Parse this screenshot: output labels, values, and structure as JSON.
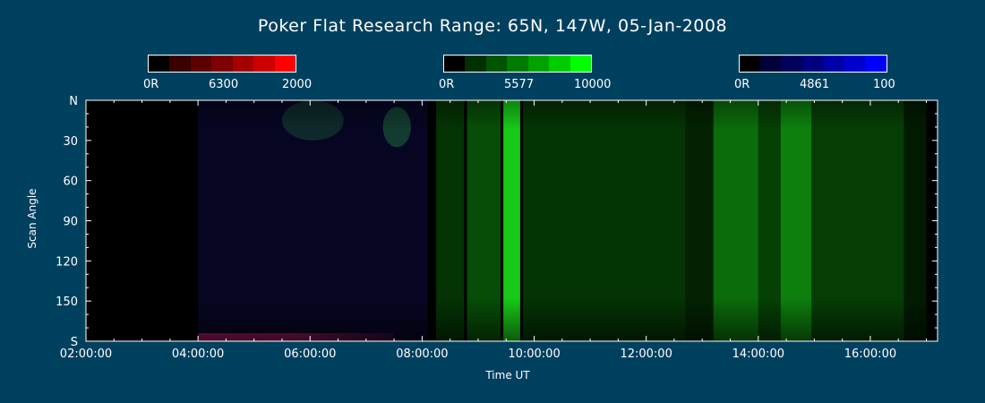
{
  "title": "Poker Flat Research Range: 65N, 147W, 05-Jan-2008",
  "colorbars": [
    {
      "label_min": "0R",
      "label_mid": "6300",
      "label_max": "2000",
      "colors": [
        "#000000",
        "#3a0000",
        "#5c0000",
        "#7e0000",
        "#a40000",
        "#cc0000",
        "#ff0000"
      ]
    },
    {
      "label_min": "0R",
      "label_mid": "5577",
      "label_max": "10000",
      "colors": [
        "#000000",
        "#003000",
        "#005400",
        "#007a00",
        "#00a200",
        "#00cc00",
        "#00ff00"
      ]
    },
    {
      "label_min": "0R",
      "label_mid": "4861",
      "label_max": "100",
      "colors": [
        "#000000",
        "#00003a",
        "#00005c",
        "#00007e",
        "#0000a8",
        "#0000cc",
        "#0000ff"
      ]
    }
  ],
  "chart_data": {
    "type": "heatmap",
    "title": "Poker Flat Research Range: 65N, 147W, 05-Jan-2008",
    "xlabel": "Time UT",
    "ylabel": "Scan Angle",
    "x_range_hours": [
      2,
      17.2
    ],
    "x_tick_labels": [
      "02:00:00",
      "04:00:00",
      "06:00:00",
      "08:00:00",
      "10:00:00",
      "12:00:00",
      "14:00:00",
      "16:00:00"
    ],
    "x_ticks_hours": [
      2,
      4,
      6,
      8,
      10,
      12,
      14,
      16
    ],
    "y_range": [
      0,
      180
    ],
    "y_tick_labels": [
      "N",
      "30",
      "60",
      "90",
      "120",
      "150",
      "S"
    ],
    "y_ticks": [
      0,
      30,
      60,
      90,
      120,
      150,
      180
    ],
    "channels": [
      "6300",
      "5577",
      "4861"
    ],
    "green_bands": [
      {
        "start_h": 8.25,
        "end_h": 8.75,
        "intensity": 0.3
      },
      {
        "start_h": 8.8,
        "end_h": 9.4,
        "intensity": 0.45
      },
      {
        "start_h": 9.45,
        "end_h": 9.75,
        "intensity": 0.95
      },
      {
        "start_h": 9.8,
        "end_h": 12.7,
        "intensity": 0.3
      },
      {
        "start_h": 12.7,
        "end_h": 13.2,
        "intensity": 0.18
      },
      {
        "start_h": 13.2,
        "end_h": 14.0,
        "intensity": 0.6
      },
      {
        "start_h": 14.0,
        "end_h": 14.4,
        "intensity": 0.38
      },
      {
        "start_h": 14.4,
        "end_h": 14.95,
        "intensity": 0.68
      },
      {
        "start_h": 14.95,
        "end_h": 16.6,
        "intensity": 0.36
      },
      {
        "start_h": 16.6,
        "end_h": 17.0,
        "intensity": 0.12
      }
    ],
    "faint_green_patches": [
      {
        "start_h": 5.5,
        "end_h": 6.6,
        "angle_start": 0,
        "angle_end": 30,
        "intensity": 0.12
      },
      {
        "start_h": 7.3,
        "end_h": 7.8,
        "angle_start": 5,
        "angle_end": 35,
        "intensity": 0.18
      }
    ],
    "blue_background": {
      "start_h": 4.0,
      "end_h": 8.1,
      "intensity": 0.1
    },
    "red_streak": {
      "start_h": 4.0,
      "end_h": 7.5,
      "angle_start": 174,
      "angle_end": 180,
      "intensity": 0.55
    }
  }
}
